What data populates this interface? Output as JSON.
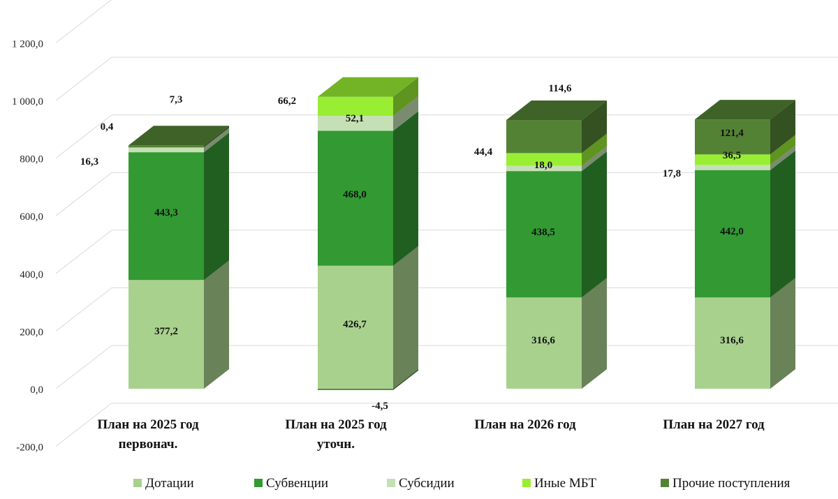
{
  "chart_data": {
    "type": "bar",
    "stacked": true,
    "style": "3d",
    "categories": [
      [
        "План на 2025 год",
        "первонач."
      ],
      [
        "План на 2025 год",
        "уточн."
      ],
      [
        "План на 2026 год"
      ],
      [
        "План на 2027 год"
      ]
    ],
    "series": [
      {
        "name": "Дотации",
        "values": [
          377.2,
          426.7,
          316.6,
          316.6
        ],
        "labels": [
          "377,2",
          "426,7",
          "316,6",
          "316,6"
        ],
        "color": "#a9d18e"
      },
      {
        "name": "Субвенции",
        "values": [
          443.3,
          468.0,
          438.5,
          442.0
        ],
        "labels": [
          "443,3",
          "468,0",
          "438,5",
          "442,0"
        ],
        "color": "#339933"
      },
      {
        "name": "Субсидии",
        "values": [
          16.3,
          52.1,
          18.0,
          17.8
        ],
        "labels": [
          "16,3",
          "52,1",
          "18,0",
          "17,8"
        ],
        "color": "#c5e0b4"
      },
      {
        "name": "Иные МБТ",
        "values": [
          0.4,
          66.2,
          44.4,
          36.5
        ],
        "labels": [
          "0,4",
          "66,2",
          "44,4",
          "36,5"
        ],
        "color": "#99ee33"
      },
      {
        "name": "Прочие поступления",
        "values": [
          7.3,
          -4.5,
          114.6,
          121.4
        ],
        "labels": [
          "7,3",
          "-4,5",
          "114,6",
          "121,4"
        ],
        "color": "#548235"
      }
    ],
    "ylim": [
      -200,
      1200
    ],
    "yticks": [
      -200,
      0,
      200,
      400,
      600,
      800,
      1000,
      1200
    ],
    "ytick_labels": [
      "-200,0",
      "0,0",
      "200,0",
      "400,0",
      "600,0",
      "800,0",
      "1 000,0",
      "1 200,0"
    ],
    "grid": true,
    "legend": "bottom"
  }
}
